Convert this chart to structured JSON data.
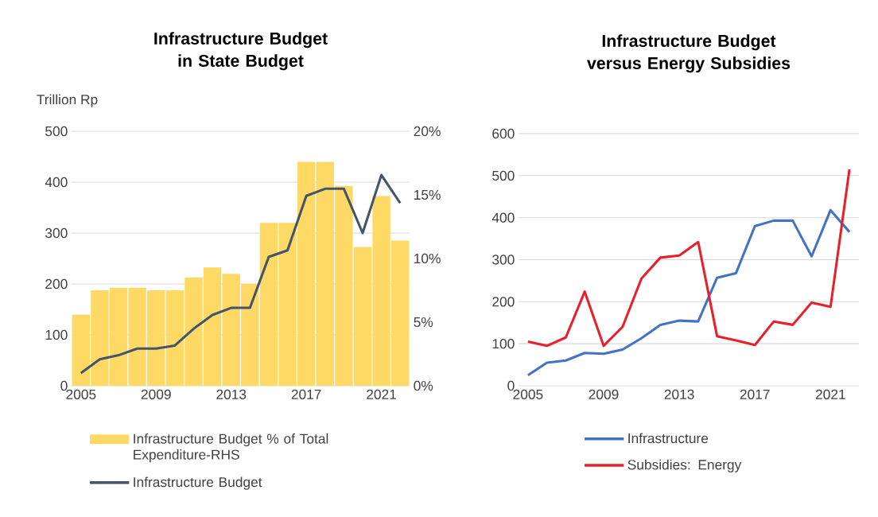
{
  "chart_data": [
    {
      "type": "bar",
      "title": "Infrastructure Budget in State Budget",
      "ylabel": "Trillion Rp",
      "x": [
        2005,
        2006,
        2007,
        2008,
        2009,
        2010,
        2011,
        2012,
        2013,
        2014,
        2015,
        2016,
        2017,
        2018,
        2019,
        2020,
        2021,
        2022
      ],
      "series": [
        {
          "name": "Infrastructure Budget % of Total Expenditure-RHS",
          "type": "bar",
          "axis": "y2",
          "color": "#ffd966",
          "values": [
            5.6,
            7.5,
            7.7,
            7.7,
            7.5,
            7.5,
            8.5,
            9.3,
            8.8,
            8.0,
            12.8,
            12.8,
            17.6,
            17.6,
            15.7,
            10.9,
            14.9,
            11.4
          ]
        },
        {
          "name": "Infrastructure Budget",
          "type": "line",
          "color": "#44546a",
          "values": [
            25,
            52,
            60,
            73,
            73,
            79,
            112,
            139,
            153,
            153,
            253,
            266,
            373,
            387,
            387,
            300,
            414,
            359
          ]
        }
      ],
      "xlim": [
        2004.5,
        2022.5
      ],
      "xticks": [
        2005,
        2009,
        2013,
        2017,
        2021
      ],
      "ylim": [
        0,
        500
      ],
      "yticks": [
        0,
        100,
        200,
        300,
        400,
        500
      ],
      "y2lim": [
        0,
        20
      ],
      "y2ticks": [
        {
          "value": 0,
          "label": "0%"
        },
        {
          "value": 5,
          "label": "5%"
        },
        {
          "value": 10,
          "label": "10%"
        },
        {
          "value": 15,
          "label": "15%"
        },
        {
          "value": 20,
          "label": "20%"
        }
      ],
      "grid": "y",
      "legend": "bottom"
    },
    {
      "type": "line",
      "title": "Infrastructure Budget versus Energy Subsidies",
      "x": [
        2005,
        2006,
        2007,
        2008,
        2009,
        2010,
        2011,
        2012,
        2013,
        2014,
        2015,
        2016,
        2017,
        2018,
        2019,
        2020,
        2021,
        2022
      ],
      "series": [
        {
          "name": "Infrastructure",
          "color": "#4472c4",
          "values": [
            25,
            55,
            60,
            78,
            76,
            86,
            113,
            145,
            155,
            153,
            257,
            268,
            380,
            393,
            393,
            308,
            418,
            366
          ]
        },
        {
          "name": "Subsidies: Energy",
          "color": "#e8202a",
          "values": [
            105,
            95,
            115,
            224,
            95,
            140,
            255,
            305,
            310,
            342,
            118,
            108,
            97,
            153,
            145,
            198,
            188,
            515
          ]
        }
      ],
      "xlim": [
        2004.5,
        2022.5
      ],
      "xticks": [
        2005,
        2009,
        2013,
        2017,
        2021
      ],
      "ylim": [
        0,
        600
      ],
      "yticks": [
        0,
        100,
        200,
        300,
        400,
        500,
        600
      ],
      "grid": "y",
      "legend": "bottom"
    }
  ]
}
